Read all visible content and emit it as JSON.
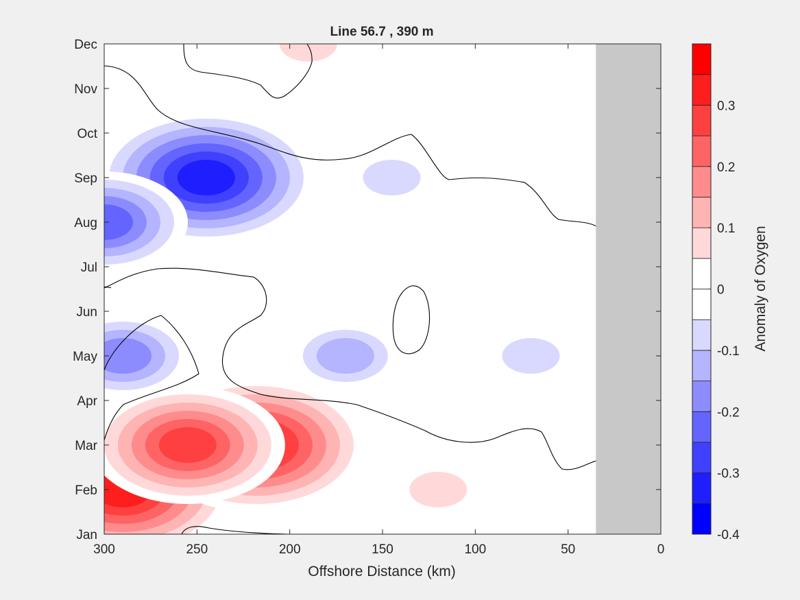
{
  "chart_data": {
    "type": "heatmap",
    "subtype": "filled-contour",
    "title": "Line 56.7 , 390 m",
    "xlabel": "Offshore Distance (km)",
    "ylabel": "",
    "colorbar_label": "Anomaly of Oxygen",
    "xlim": [
      300,
      0
    ],
    "x_ticks": [
      300,
      250,
      200,
      150,
      100,
      50,
      0
    ],
    "x_tick_labels": [
      "300",
      "250",
      "200",
      "150",
      "100",
      "50",
      "0"
    ],
    "y_ticks": [
      "Jan",
      "Feb",
      "Mar",
      "Apr",
      "May",
      "Jun",
      "Jul",
      "Aug",
      "Sep",
      "Oct",
      "Nov",
      "Dec"
    ],
    "colorbar_ticks": [
      -0.4,
      -0.3,
      -0.2,
      -0.1,
      0,
      0.1,
      0.2,
      0.3
    ],
    "colorbar_tick_labels": [
      "-0.4",
      "-0.3",
      "-0.2",
      "-0.1",
      "0",
      "0.1",
      "0.2",
      "0.3"
    ],
    "colorbar_range": [
      -0.4,
      0.4
    ],
    "contour_interval": 0.05,
    "colormap": [
      "#0000ff",
      "#1e1eff",
      "#4040ff",
      "#6464ff",
      "#8c8cff",
      "#b4b4ff",
      "#d9d9ff",
      "#ffffff",
      "#ffffff",
      "#ffd9d9",
      "#ffb4b4",
      "#ff8c8c",
      "#ff6464",
      "#ff4040",
      "#ff1e1e",
      "#ff0000"
    ],
    "no_data_color": "#c8c8c8",
    "no_data_region": {
      "x_from": 35,
      "x_to": 0,
      "note": "no data"
    },
    "zero_contour_color": "#000000",
    "features": [
      {
        "x": 290,
        "month": "Feb",
        "value": 0.35
      },
      {
        "x": 218,
        "month": "Mar",
        "value": 0.35
      },
      {
        "x": 255,
        "month": "Mar",
        "value": 0.3
      },
      {
        "x": 245,
        "month": "Sep",
        "value": -0.35
      },
      {
        "x": 300,
        "month": "Aug",
        "value": -0.25
      },
      {
        "x": 290,
        "month": "May",
        "value": -0.2
      },
      {
        "x": 170,
        "month": "May",
        "value": -0.15
      },
      {
        "x": 145,
        "month": "Sep",
        "value": -0.1
      },
      {
        "x": 70,
        "month": "May",
        "value": -0.1
      },
      {
        "x": 190,
        "month": "Dec",
        "value": 0.1
      },
      {
        "x": 120,
        "month": "Feb",
        "value": 0.1
      }
    ]
  }
}
